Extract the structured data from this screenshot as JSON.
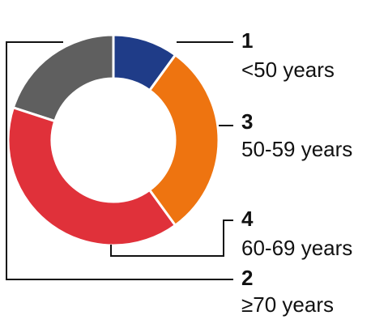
{
  "chart_data": {
    "type": "donut",
    "categories": [
      "<50 years",
      "50-59 years",
      "60-69 years",
      "≥70 years"
    ],
    "values": [
      1,
      3,
      4,
      2
    ],
    "colors": [
      "#1f3c88",
      "#ee7410",
      "#e0313a",
      "#5f5f5f"
    ]
  }
}
